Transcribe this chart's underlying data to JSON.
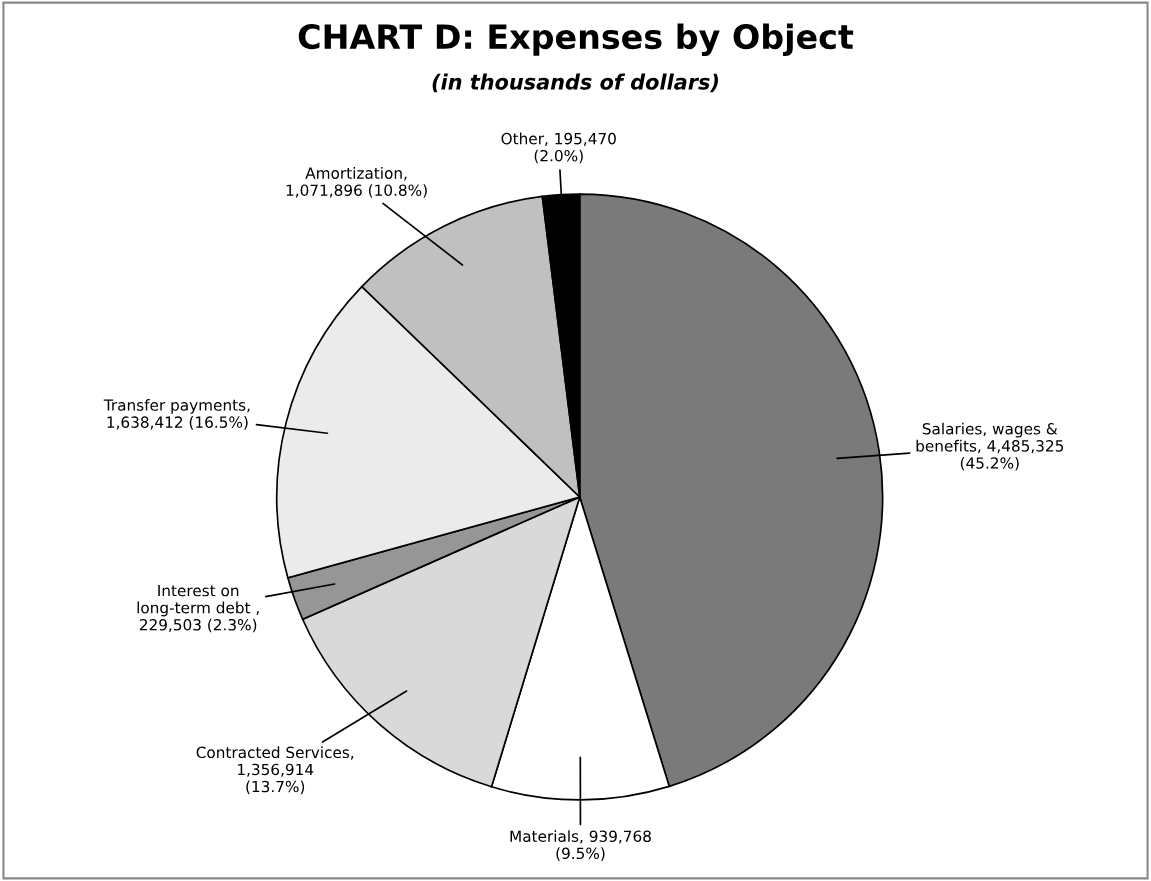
{
  "chart_data": {
    "type": "pie",
    "title": "CHART D: Expenses by Object",
    "subtitle": "(in thousands of dollars)",
    "categories": [
      "Salaries, wages &\nbenefits",
      "Materials",
      "Contracted Services",
      "Interest on\nlong-term debt ",
      "Transfer payments",
      "Amortization",
      "Other"
    ],
    "values": [
      4485325,
      939768,
      1356914,
      229503,
      1638412,
      1071896,
      195470
    ],
    "value_labels": [
      ", 4,485,325\n(45.2%)",
      ", 939,768\n(9.5%)",
      ",\n1,356,914\n(13.7%)",
      ",\n229,503 (2.3%)",
      ",\n1,638,412 (16.5%)",
      ",\n1,071,896 (10.8%)",
      ", 195,470\n(2.0%)"
    ],
    "colors": [
      "#7a7a7a",
      "#ffffff",
      "#d9d9d9",
      "#969696",
      "#ebebeb",
      "#c0c0c0",
      "#000000"
    ],
    "legend": false
  }
}
